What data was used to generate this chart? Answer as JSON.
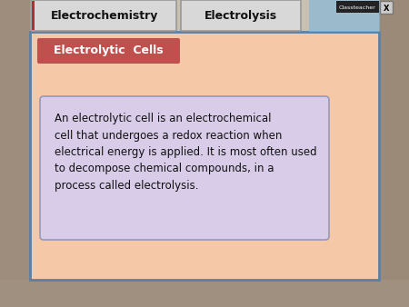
{
  "tab1_text": "Electrochemistry",
  "tab2_text": "Electrolysis",
  "subtitle_text": "Electrolytic  Cells",
  "body_text": "An electrolytic cell is an electrochemical\ncell that undergoes a redox reaction when\nelectrical energy is applied. It is most often used\nto decompose chemical compounds, in a\nprocess called electrolysis.",
  "outer_bg": "#c8b89a",
  "main_panel_bg": "#f5c9a8",
  "tab1_bg": "#d8d8d8",
  "tab2_bg": "#d8d8d8",
  "subtitle_bg": "#c0504d",
  "subtitle_text_color": "#ffffff",
  "body_box_bg": "#d8cce8",
  "body_text_color": "#111111",
  "main_border_color": "#5b7fa6",
  "tab_border_color": "#999999",
  "tab_accent_color": "#b03030",
  "classteacher_bg": "#222222",
  "x_button_bg": "#cccccc",
  "figsize": [
    4.5,
    3.38
  ],
  "dpi": 100
}
